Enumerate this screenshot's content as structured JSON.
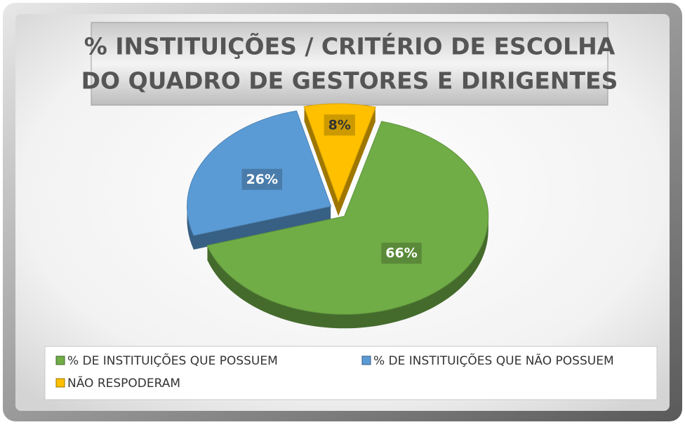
{
  "chart_data": {
    "type": "pie",
    "title": [
      "% INSTITUIÇÕES / CRITÉRIO DE ESCOLHA",
      "DO QUADRO DE GESTORES E DIRIGENTES"
    ],
    "categories": [
      "% DE INSTITUIÇÕES QUE POSSUEM",
      "% DE INSTITUIÇÕES QUE NÃO POSSUEM",
      "NÃO RESPODERAM"
    ],
    "values": [
      66,
      26,
      8
    ],
    "value_labels": [
      "66%",
      "26%",
      "8%"
    ],
    "colors": [
      "#70ad47",
      "#5b9bd5",
      "#ffc000"
    ],
    "legend": "bottom"
  }
}
